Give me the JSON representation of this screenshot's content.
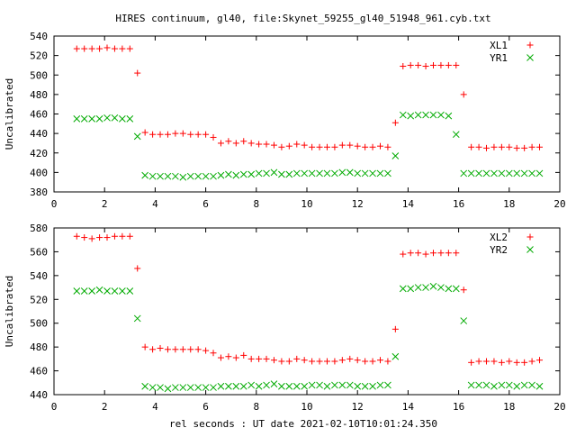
{
  "page": {
    "title": "HIRES continuum, gl40, file:Skynet_59255_gl40_51948_961.cyb.txt",
    "xlabel": "rel seconds : UT date 2021-02-10T10:01:24.350"
  },
  "colors": {
    "xl_series": "#ff0000",
    "yr_series": "#00aa00",
    "axis": "#000000",
    "background": "#ffffff"
  },
  "chart_data": [
    {
      "type": "scatter",
      "title": "HIRES continuum, gl40, file:Skynet_59255_gl40_51948_961.cyb.txt",
      "xlabel": "",
      "ylabel": "Uncalibrated",
      "xlim": [
        0,
        20
      ],
      "ylim": [
        380,
        540
      ],
      "xticks": [
        0,
        2,
        4,
        6,
        8,
        10,
        12,
        14,
        16,
        18,
        20
      ],
      "yticks": [
        380,
        400,
        420,
        440,
        460,
        480,
        500,
        520,
        540
      ],
      "grid": false,
      "legend": "top-right",
      "series": [
        {
          "name": "XL1",
          "marker": "plus",
          "color": "#ff0000",
          "x": [
            0.9,
            1.2,
            1.5,
            1.8,
            2.1,
            2.4,
            2.7,
            3.0,
            3.3,
            3.6,
            3.9,
            4.2,
            4.5,
            4.8,
            5.1,
            5.4,
            5.7,
            6.0,
            6.3,
            6.6,
            6.9,
            7.2,
            7.5,
            7.8,
            8.1,
            8.4,
            8.7,
            9.0,
            9.3,
            9.6,
            9.9,
            10.2,
            10.5,
            10.8,
            11.1,
            11.4,
            11.7,
            12.0,
            12.3,
            12.6,
            12.9,
            13.2,
            13.5,
            13.8,
            14.1,
            14.4,
            14.7,
            15.0,
            15.3,
            15.6,
            15.9,
            16.2,
            16.5,
            16.8,
            17.1,
            17.4,
            17.7,
            18.0,
            18.3,
            18.6,
            18.9,
            19.2
          ],
          "y": [
            527,
            527,
            527,
            527,
            528,
            527,
            527,
            527,
            502,
            441,
            439,
            439,
            439,
            440,
            440,
            439,
            439,
            439,
            436,
            430,
            432,
            430,
            432,
            430,
            429,
            429,
            428,
            426,
            427,
            429,
            428,
            426,
            426,
            426,
            426,
            428,
            428,
            427,
            426,
            426,
            427,
            426,
            451,
            509,
            510,
            510,
            509,
            510,
            510,
            510,
            510,
            480,
            426,
            426,
            425,
            426,
            426,
            426,
            425,
            425,
            426,
            426
          ]
        },
        {
          "name": "YR1",
          "marker": "cross",
          "color": "#00aa00",
          "x": [
            0.9,
            1.2,
            1.5,
            1.8,
            2.1,
            2.4,
            2.7,
            3.0,
            3.3,
            3.6,
            3.9,
            4.2,
            4.5,
            4.8,
            5.1,
            5.4,
            5.7,
            6.0,
            6.3,
            6.6,
            6.9,
            7.2,
            7.5,
            7.8,
            8.1,
            8.4,
            8.7,
            9.0,
            9.3,
            9.6,
            9.9,
            10.2,
            10.5,
            10.8,
            11.1,
            11.4,
            11.7,
            12.0,
            12.3,
            12.6,
            12.9,
            13.2,
            13.5,
            13.8,
            14.1,
            14.4,
            14.7,
            15.0,
            15.3,
            15.6,
            15.9,
            16.2,
            16.5,
            16.8,
            17.1,
            17.4,
            17.7,
            18.0,
            18.3,
            18.6,
            18.9,
            19.2
          ],
          "y": [
            455,
            455,
            455,
            455,
            456,
            456,
            455,
            455,
            437,
            397,
            396,
            396,
            396,
            396,
            395,
            396,
            396,
            396,
            396,
            397,
            398,
            397,
            398,
            398,
            399,
            399,
            400,
            398,
            398,
            399,
            399,
            399,
            399,
            399,
            399,
            400,
            400,
            399,
            399,
            399,
            399,
            399,
            417,
            459,
            458,
            459,
            459,
            459,
            459,
            458,
            439,
            399,
            399,
            399,
            399,
            399,
            399,
            399,
            399,
            399,
            399,
            399
          ]
        }
      ]
    },
    {
      "type": "scatter",
      "title": "",
      "xlabel": "rel seconds : UT date 2021-02-10T10:01:24.350",
      "ylabel": "Uncalibrated",
      "xlim": [
        0,
        20
      ],
      "ylim": [
        440,
        580
      ],
      "xticks": [
        0,
        2,
        4,
        6,
        8,
        10,
        12,
        14,
        16,
        18,
        20
      ],
      "yticks": [
        440,
        460,
        480,
        500,
        520,
        540,
        560,
        580
      ],
      "grid": false,
      "legend": "top-right",
      "series": [
        {
          "name": "XL2",
          "marker": "plus",
          "color": "#ff0000",
          "x": [
            0.9,
            1.2,
            1.5,
            1.8,
            2.1,
            2.4,
            2.7,
            3.0,
            3.3,
            3.6,
            3.9,
            4.2,
            4.5,
            4.8,
            5.1,
            5.4,
            5.7,
            6.0,
            6.3,
            6.6,
            6.9,
            7.2,
            7.5,
            7.8,
            8.1,
            8.4,
            8.7,
            9.0,
            9.3,
            9.6,
            9.9,
            10.2,
            10.5,
            10.8,
            11.1,
            11.4,
            11.7,
            12.0,
            12.3,
            12.6,
            12.9,
            13.2,
            13.5,
            13.8,
            14.1,
            14.4,
            14.7,
            15.0,
            15.3,
            15.6,
            15.9,
            16.2,
            16.5,
            16.8,
            17.1,
            17.4,
            17.7,
            18.0,
            18.3,
            18.6,
            18.9,
            19.2
          ],
          "y": [
            573,
            572,
            571,
            572,
            572,
            573,
            573,
            573,
            546,
            480,
            478,
            479,
            478,
            478,
            478,
            478,
            478,
            477,
            475,
            471,
            472,
            471,
            473,
            470,
            470,
            470,
            469,
            468,
            468,
            470,
            469,
            468,
            468,
            468,
            468,
            469,
            470,
            469,
            468,
            468,
            469,
            468,
            495,
            558,
            559,
            559,
            558,
            559,
            559,
            559,
            559,
            528,
            467,
            468,
            468,
            468,
            467,
            468,
            467,
            467,
            468,
            469
          ]
        },
        {
          "name": "YR2",
          "marker": "cross",
          "color": "#00aa00",
          "x": [
            0.9,
            1.2,
            1.5,
            1.8,
            2.1,
            2.4,
            2.7,
            3.0,
            3.3,
            3.6,
            3.9,
            4.2,
            4.5,
            4.8,
            5.1,
            5.4,
            5.7,
            6.0,
            6.3,
            6.6,
            6.9,
            7.2,
            7.5,
            7.8,
            8.1,
            8.4,
            8.7,
            9.0,
            9.3,
            9.6,
            9.9,
            10.2,
            10.5,
            10.8,
            11.1,
            11.4,
            11.7,
            12.0,
            12.3,
            12.6,
            12.9,
            13.2,
            13.5,
            13.8,
            14.1,
            14.4,
            14.7,
            15.0,
            15.3,
            15.6,
            15.9,
            16.2,
            16.5,
            16.8,
            17.1,
            17.4,
            17.7,
            18.0,
            18.3,
            18.6,
            18.9,
            19.2
          ],
          "y": [
            527,
            527,
            527,
            528,
            527,
            527,
            527,
            527,
            504,
            447,
            446,
            446,
            445,
            446,
            446,
            446,
            446,
            446,
            446,
            447,
            447,
            447,
            447,
            448,
            447,
            448,
            449,
            447,
            447,
            447,
            447,
            448,
            448,
            447,
            448,
            448,
            448,
            447,
            447,
            447,
            448,
            448,
            472,
            529,
            529,
            530,
            530,
            531,
            530,
            529,
            529,
            502,
            448,
            448,
            448,
            447,
            448,
            448,
            447,
            448,
            448,
            447
          ]
        }
      ]
    }
  ]
}
